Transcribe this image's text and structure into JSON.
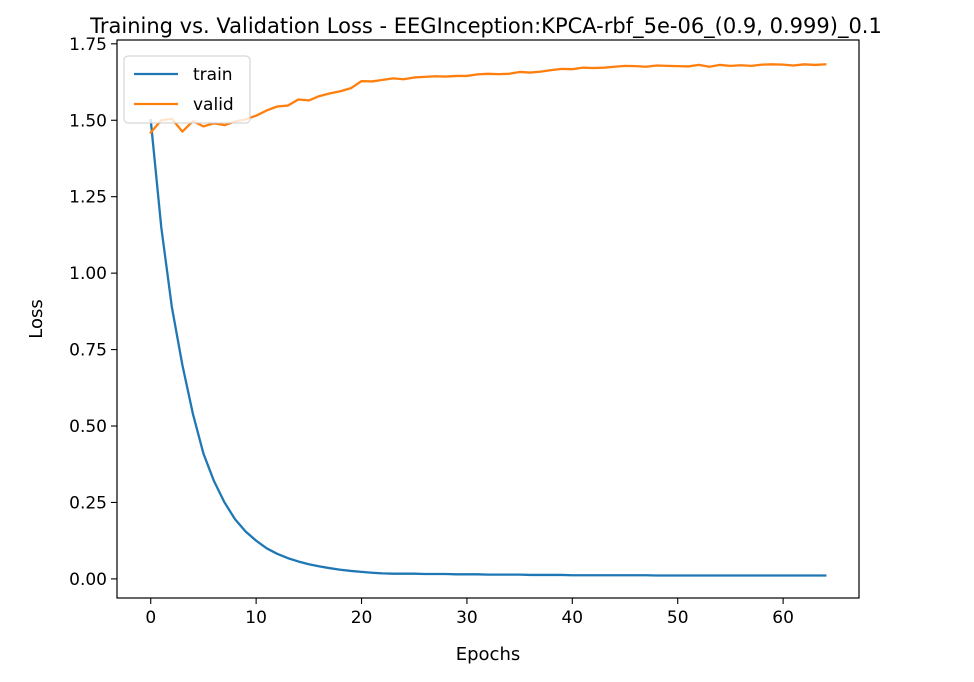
{
  "chart_data": {
    "type": "line",
    "title": "Training vs. Validation Loss - EEGInception:KPCA-rbf_5e-06_(0.9, 0.999)_0.1",
    "xlabel": "Epochs",
    "ylabel": "Loss",
    "xlim": [
      -3.2,
      67.2
    ],
    "ylim": [
      -0.0625,
      1.7625
    ],
    "xticks": [
      0,
      10,
      20,
      30,
      40,
      50,
      60
    ],
    "xtick_labels": [
      "0",
      "10",
      "20",
      "30",
      "40",
      "50",
      "60"
    ],
    "yticks": [
      0.0,
      0.25,
      0.5,
      0.75,
      1.0,
      1.25,
      1.5,
      1.75
    ],
    "ytick_labels": [
      "0.00",
      "0.25",
      "0.50",
      "0.75",
      "1.00",
      "1.25",
      "1.50",
      "1.75"
    ],
    "grid": false,
    "legend_position": "upper-left",
    "series": [
      {
        "name": "train",
        "color": "#1f77b4",
        "x": [
          0,
          1,
          2,
          3,
          4,
          5,
          6,
          7,
          8,
          9,
          10,
          11,
          12,
          13,
          14,
          15,
          16,
          17,
          18,
          19,
          20,
          21,
          22,
          23,
          24,
          25,
          26,
          27,
          28,
          29,
          30,
          31,
          32,
          33,
          34,
          35,
          36,
          37,
          38,
          39,
          40,
          41,
          42,
          43,
          44,
          45,
          46,
          47,
          48,
          49,
          50,
          51,
          52,
          53,
          54,
          55,
          56,
          57,
          58,
          59,
          60,
          61,
          62,
          63,
          64
        ],
        "y": [
          1.5,
          1.15,
          0.89,
          0.7,
          0.54,
          0.41,
          0.32,
          0.25,
          0.195,
          0.155,
          0.125,
          0.1,
          0.082,
          0.068,
          0.057,
          0.048,
          0.041,
          0.035,
          0.03,
          0.026,
          0.023,
          0.02,
          0.018,
          0.017,
          0.017,
          0.017,
          0.016,
          0.016,
          0.016,
          0.015,
          0.015,
          0.015,
          0.014,
          0.014,
          0.014,
          0.014,
          0.013,
          0.013,
          0.013,
          0.013,
          0.012,
          0.012,
          0.012,
          0.012,
          0.012,
          0.012,
          0.012,
          0.012,
          0.011,
          0.011,
          0.011,
          0.011,
          0.011,
          0.011,
          0.011,
          0.011,
          0.011,
          0.011,
          0.011,
          0.011,
          0.011,
          0.011,
          0.011,
          0.011,
          0.011
        ]
      },
      {
        "name": "valid",
        "color": "#ff7f0e",
        "x": [
          0,
          1,
          2,
          3,
          4,
          5,
          6,
          7,
          8,
          9,
          10,
          11,
          12,
          13,
          14,
          15,
          16,
          17,
          18,
          19,
          20,
          21,
          22,
          23,
          24,
          25,
          26,
          27,
          28,
          29,
          30,
          31,
          32,
          33,
          34,
          35,
          36,
          37,
          38,
          39,
          40,
          41,
          42,
          43,
          44,
          45,
          46,
          47,
          48,
          49,
          50,
          51,
          52,
          53,
          54,
          55,
          56,
          57,
          58,
          59,
          60,
          61,
          62,
          63,
          64
        ],
        "y": [
          1.46,
          1.5,
          1.505,
          1.463,
          1.497,
          1.48,
          1.49,
          1.484,
          1.496,
          1.503,
          1.515,
          1.532,
          1.545,
          1.548,
          1.568,
          1.565,
          1.579,
          1.588,
          1.595,
          1.605,
          1.628,
          1.627,
          1.632,
          1.637,
          1.634,
          1.64,
          1.642,
          1.644,
          1.643,
          1.645,
          1.645,
          1.65,
          1.652,
          1.651,
          1.652,
          1.658,
          1.656,
          1.659,
          1.664,
          1.668,
          1.667,
          1.672,
          1.671,
          1.672,
          1.675,
          1.678,
          1.677,
          1.675,
          1.679,
          1.678,
          1.677,
          1.676,
          1.681,
          1.675,
          1.681,
          1.678,
          1.68,
          1.678,
          1.682,
          1.683,
          1.682,
          1.679,
          1.683,
          1.681,
          1.683
        ]
      }
    ]
  }
}
